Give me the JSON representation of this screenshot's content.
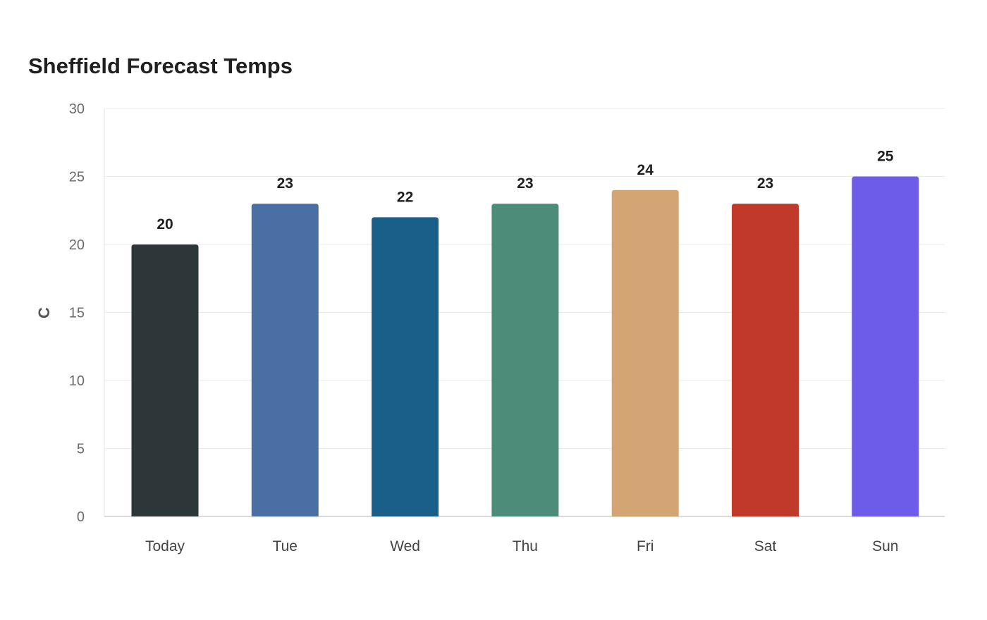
{
  "chart_data": {
    "type": "bar",
    "title": "Sheffield Forecast Temps",
    "xlabel": "",
    "ylabel": "C",
    "categories": [
      "Today",
      "Tue",
      "Wed",
      "Thu",
      "Fri",
      "Sat",
      "Sun"
    ],
    "values": [
      20,
      23,
      22,
      23,
      24,
      23,
      25
    ],
    "data_labels": [
      "20",
      "23",
      "22",
      "23",
      "24",
      "23",
      "25"
    ],
    "colors": [
      "#2d3638",
      "#4a6fa5",
      "#1a5f8a",
      "#4e8c7a",
      "#d4a574",
      "#c0392b",
      "#6c5ce7"
    ],
    "ylim": [
      0,
      30
    ],
    "yticks": [
      0,
      5,
      10,
      15,
      20,
      25,
      30
    ],
    "grid": true,
    "legend": "none"
  }
}
